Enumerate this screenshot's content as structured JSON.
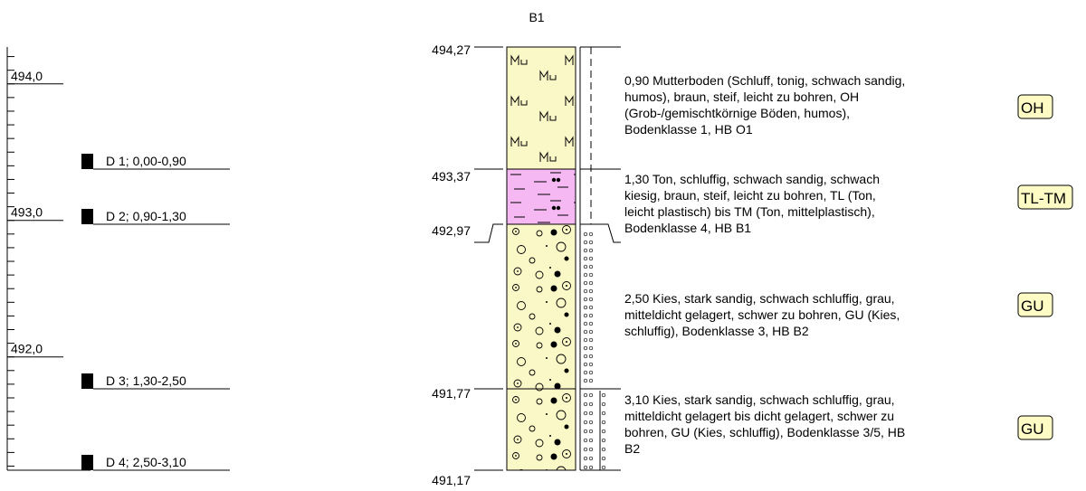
{
  "title": "B1",
  "elevation_scale": {
    "labels": [
      "494,0",
      "493,0",
      "492,0"
    ],
    "values": [
      494.0,
      493.0,
      492.0
    ]
  },
  "samples": [
    {
      "label": "D 1; 0,00-0,90"
    },
    {
      "label": "D 2; 0,90-1,30"
    },
    {
      "label": "D 3; 1,30-2,50"
    },
    {
      "label": "D 4; 2,50-3,10"
    }
  ],
  "boundaries": [
    {
      "label": "494,27",
      "value": 494.27
    },
    {
      "label": "493,37",
      "value": 493.37
    },
    {
      "label": "492,97",
      "value": 492.97
    },
    {
      "label": "491,77",
      "value": 491.77
    },
    {
      "label": "491,17",
      "value": 491.17
    }
  ],
  "layers": [
    {
      "depth": "0,90",
      "lines": [
        "0,90  Mutterboden (Schluff, tonig, schwach sandig,",
        "humos), braun, steif, leicht zu bohren, OH",
        "(Grob-/gemischtkörnige Böden, humos),",
        "Bodenklasse 1, HB O1"
      ],
      "class": "OH",
      "color": "#fbf8c8"
    },
    {
      "depth": "1,30",
      "lines": [
        "1,30  Ton, schluffig, schwach sandig, schwach",
        "kiesig, braun, steif, leicht zu bohren, TL (Ton,",
        "leicht plastisch) bis TM (Ton, mittelplastisch),",
        "Bodenklasse 4, HB B1"
      ],
      "class": "TL-TM",
      "color": "#f5b8f3"
    },
    {
      "depth": "2,50",
      "lines": [
        "2,50  Kies, stark sandig, schwach schluffig, grau,",
        "mitteldicht gelagert, schwer zu bohren, GU (Kies,",
        "schluffig), Bodenklasse 3, HB B2"
      ],
      "class": "GU",
      "color": "#fbf8c8"
    },
    {
      "depth": "3,10",
      "lines": [
        "3,10  Kies, stark sandig, schwach schluffig, grau,",
        "mitteldicht gelagert bis dicht gelagert, schwer zu",
        "bohren, GU (Kies, schluffig), Bodenklasse 3/5, HB",
        "B2"
      ],
      "class": "GU",
      "color": "#fbf8c8"
    }
  ],
  "colors": {
    "class_box": "#fefcc4",
    "ink": "#000000"
  }
}
